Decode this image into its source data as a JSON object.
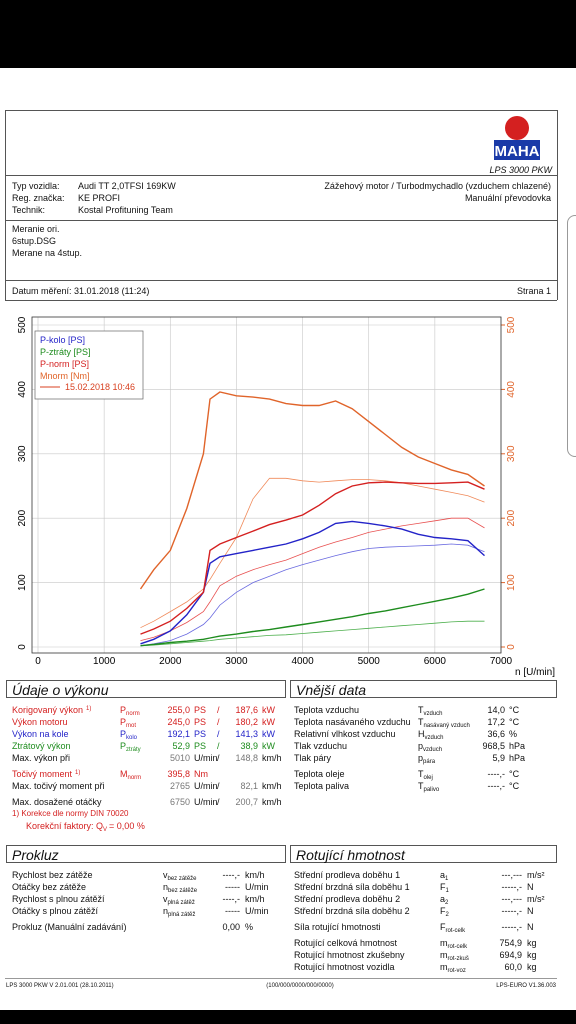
{
  "header": {
    "logo": "MAHA",
    "product": "LPS 3000 PKW"
  },
  "vehicle": {
    "left": [
      [
        "Typ vozidla:",
        "Audi TT 2,0TFSI 169KW"
      ],
      [
        "Reg. značka:",
        "KE PROFI"
      ],
      [
        "Technik:",
        "Kostal Profituning Team"
      ]
    ],
    "right": [
      "Zážehový motor / Turbodmychadlo (vzduchem chlazené)",
      "Manuální převodovka"
    ]
  },
  "notes": [
    "Meranie ori.",
    "6stup.DSG",
    "Merane na 4stup."
  ],
  "date": "Datum měření: 31.01.2018 (11:24)",
  "page": "Strana 1",
  "chart_data": {
    "type": "line",
    "x": [
      1550,
      1750,
      2000,
      2250,
      2500,
      2600,
      2750,
      3000,
      3250,
      3500,
      3750,
      4000,
      4250,
      4500,
      4750,
      5000,
      5250,
      5500,
      5750,
      6000,
      6250,
      6500,
      6750
    ],
    "xlim": [
      0,
      7000
    ],
    "xticks": [
      0,
      1000,
      2000,
      3000,
      4000,
      5000,
      6000,
      7000
    ],
    "xlabel": "n [U/min]",
    "ylim": [
      0,
      500
    ],
    "yticks": [
      0,
      100,
      200,
      300,
      400,
      500
    ],
    "y2lim": [
      0,
      500
    ],
    "y2ticks": [
      0,
      100,
      200,
      300,
      400,
      500
    ],
    "y2color": "#e0642a",
    "grid": true,
    "legend": "upper left",
    "comparison_label": "15.02.2018 10:46",
    "comparison_color": "#d84020",
    "series": [
      {
        "name": "P-kolo [PS]",
        "color": "#2323c8",
        "values": [
          5,
          12,
          25,
          50,
          85,
          130,
          140,
          145,
          150,
          155,
          160,
          168,
          178,
          192,
          195,
          192,
          188,
          183,
          175,
          170,
          168,
          165,
          142
        ]
      },
      {
        "name": "P-ztráty [PS]",
        "color": "#1e8c1e",
        "values": [
          2,
          4,
          7,
          9,
          12,
          14,
          17,
          20,
          24,
          27,
          31,
          35,
          39,
          43,
          47,
          52,
          56,
          61,
          66,
          71,
          76,
          82,
          90
        ]
      },
      {
        "name": "P-norm [PS]",
        "color": "#d42020",
        "values": [
          20,
          28,
          40,
          60,
          85,
          150,
          160,
          170,
          180,
          190,
          197,
          205,
          220,
          238,
          250,
          255,
          256,
          255,
          254,
          254,
          255,
          256,
          245
        ]
      },
      {
        "name": "Mnorm [Nm]",
        "color": "#e0642a",
        "axis": "y2",
        "values": [
          90,
          120,
          150,
          215,
          300,
          385,
          396,
          390,
          388,
          385,
          378,
          375,
          375,
          382,
          370,
          350,
          330,
          310,
          295,
          285,
          275,
          268,
          250
        ]
      },
      {
        "color": "#6a6ae0",
        "comparison": true,
        "values": [
          2,
          5,
          10,
          20,
          35,
          45,
          65,
          85,
          100,
          110,
          120,
          128,
          135,
          142,
          148,
          153,
          155,
          156,
          157,
          158,
          160,
          158,
          148
        ]
      },
      {
        "color": "#4caf4c",
        "comparison": true,
        "values": [
          2,
          3,
          5,
          7,
          9,
          10,
          12,
          14,
          16,
          18,
          19,
          21,
          23,
          25,
          27,
          29,
          31,
          33,
          35,
          37,
          39,
          40,
          40
        ]
      },
      {
        "color": "#e85050",
        "comparison": true,
        "values": [
          10,
          15,
          25,
          38,
          55,
          70,
          95,
          110,
          120,
          128,
          135,
          145,
          155,
          163,
          170,
          178,
          183,
          188,
          192,
          196,
          200,
          200,
          185
        ]
      },
      {
        "color": "#f08a5a",
        "comparison": true,
        "axis": "y2",
        "values": [
          30,
          40,
          55,
          70,
          90,
          105,
          130,
          170,
          230,
          262,
          262,
          258,
          256,
          258,
          260,
          260,
          258,
          255,
          250,
          245,
          240,
          235,
          225
        ]
      }
    ]
  },
  "performance": {
    "title": "Údaje o výkonu",
    "groups": [
      [
        {
          "label": "Korigovaný výkon",
          "note": "1)",
          "symbol": {
            "base": "P",
            "sub": "norm"
          },
          "value1": "255,0",
          "unit1": "PS",
          "sep": "/",
          "value2": "187,6",
          "unit2": "kW",
          "color": "#d42020"
        },
        {
          "label": "Výkon motoru",
          "symbol": {
            "base": "P",
            "sub": "mot"
          },
          "value1": "245,0",
          "unit1": "PS",
          "sep": "/",
          "value2": "180,2",
          "unit2": "kW",
          "color": "#d42020"
        },
        {
          "label": "Výkon na kole",
          "symbol": {
            "base": "P",
            "sub": "kolo"
          },
          "value1": "192,1",
          "unit1": "PS",
          "sep": "/",
          "value2": "141,3",
          "unit2": "kW",
          "color": "#2323c8"
        },
        {
          "label": "Ztrátový výkon",
          "symbol": {
            "base": "P",
            "sub": "ztráty"
          },
          "value1": "52,9",
          "unit1": "PS",
          "sep": "/",
          "value2": "38,9",
          "unit2": "kW",
          "color": "#1e8c1e"
        },
        {
          "label": "Max. výkon při",
          "value1": "5010",
          "unit1": "U/min",
          "sep": "/",
          "value2": "148,8",
          "unit2": "km/h",
          "color": "#111",
          "value_color": "#777"
        }
      ],
      [
        {
          "label": "Točivý moment",
          "note": "1)",
          "symbol": {
            "base": "M",
            "sub": "norm"
          },
          "value1": "395,8",
          "unit1": "Nm",
          "color": "#d42020"
        },
        {
          "label": "Max. točivý moment při",
          "value1": "2765",
          "unit1": "U/min",
          "sep": "/",
          "value2": "82,1",
          "unit2": "km/h",
          "color": "#111",
          "value_color": "#777"
        }
      ],
      [
        {
          "label": "Max. dosažené otáčky",
          "value1": "6750",
          "unit1": "U/min",
          "sep": "/",
          "value2": "200,7",
          "unit2": "km/h",
          "color": "#111",
          "value_color": "#777"
        }
      ]
    ],
    "footnote": "1) Korekce dle normy DIN 70020",
    "factor": {
      "text": "Korekční faktory: Q",
      "sub": "V",
      "rest": "=  0,00 %"
    }
  },
  "external": {
    "title": "Vnější data",
    "groups": [
      [
        {
          "label": "Teplota vzduchu",
          "symbol": {
            "base": "T",
            "sub": "vzduch"
          },
          "value": "14,0",
          "unit": "°C"
        },
        {
          "label": "Teplota nasávaného vzduchu",
          "symbol": {
            "base": "T",
            "sub": "nasávaný vzduch"
          },
          "value": "17,2",
          "unit": "°C"
        },
        {
          "label": "Relativní vlhkost vzduchu",
          "symbol": {
            "base": "H",
            "sub": "vzduch"
          },
          "value": "36,6",
          "unit": "%"
        },
        {
          "label": "Tlak vzduchu",
          "symbol": {
            "base": "p",
            "sub": "vzduch"
          },
          "value": "968,5",
          "unit": "hPa"
        },
        {
          "label": "Tlak páry",
          "symbol": {
            "base": "p",
            "sub": "pára"
          },
          "value": "5,9",
          "unit": "hPa"
        }
      ],
      [
        {
          "label": "Teplota oleje",
          "symbol": {
            "base": "T",
            "sub": "olej"
          },
          "value": "----,-",
          "unit": "°C"
        },
        {
          "label": "Teplota paliva",
          "symbol": {
            "base": "T",
            "sub": "palivo"
          },
          "value": "----,-",
          "unit": "°C"
        }
      ]
    ]
  },
  "slip": {
    "title": "Prokluz",
    "groups": [
      [
        {
          "label": "Rychlost bez zátěže",
          "symbol": {
            "base": "v",
            "sub": "bez zátěže"
          },
          "value": "----,-",
          "unit": "km/h"
        },
        {
          "label": "Otáčky bez zátěže",
          "symbol": {
            "base": "n",
            "sub": "bez zátěže"
          },
          "value": "-----",
          "unit": "U/min"
        },
        {
          "label": "Rychlost s plnou zátěží",
          "symbol": {
            "base": "v",
            "sub": "plná zátěž"
          },
          "value": "----,-",
          "unit": "km/h"
        },
        {
          "label": "Otáčky s plnou zátěží",
          "symbol": {
            "base": "n",
            "sub": "plná zátěž"
          },
          "value": "-----",
          "unit": "U/min"
        }
      ],
      [
        {
          "label": "Prokluz (Manuální zadávání)",
          "value": "0,00",
          "unit": "%"
        }
      ]
    ]
  },
  "rotating": {
    "title": "Rotující hmotnost",
    "groups": [
      [
        {
          "label": "Střední prodleva doběhu 1",
          "symbol": {
            "base": "a",
            "sub": "1"
          },
          "value": "---,---",
          "unit": "m/s²"
        },
        {
          "label": "Střední brzdná síla doběhu 1",
          "symbol": {
            "base": "F",
            "sub": "1"
          },
          "value": "-----,-",
          "unit": "N"
        },
        {
          "label": "Střední prodleva doběhu 2",
          "symbol": {
            "base": "a",
            "sub": "2"
          },
          "value": "---,---",
          "unit": "m/s²"
        },
        {
          "label": "Střední brzdná síla doběhu 2",
          "symbol": {
            "base": "F",
            "sub": "2"
          },
          "value": "-----,-",
          "unit": "N"
        }
      ],
      [
        {
          "label": "Síla rotující hmotnosti",
          "symbol": {
            "base": "F",
            "sub": "rot-celk"
          },
          "value": "-----,-",
          "unit": "N"
        }
      ],
      [
        {
          "label": "Rotující celková hmotnost",
          "symbol": {
            "base": "m",
            "sub": "rot-celk"
          },
          "value": "754,9",
          "unit": "kg"
        },
        {
          "label": "Rotující hmotnost zkušebny",
          "symbol": {
            "base": "m",
            "sub": "rot-zkuš"
          },
          "value": "694,9",
          "unit": "kg"
        },
        {
          "label": "Rotující hmotnost vozidla",
          "symbol": {
            "base": "m",
            "sub": "rot-voz"
          },
          "value": "60,0",
          "unit": "kg"
        }
      ]
    ]
  },
  "footer": {
    "left": "LPS 3000 PKW V 2.01.001 (28.10.2011)",
    "center": "(100/000/0000/000/0000)",
    "right": "LPS-EURO V1.36.003"
  }
}
